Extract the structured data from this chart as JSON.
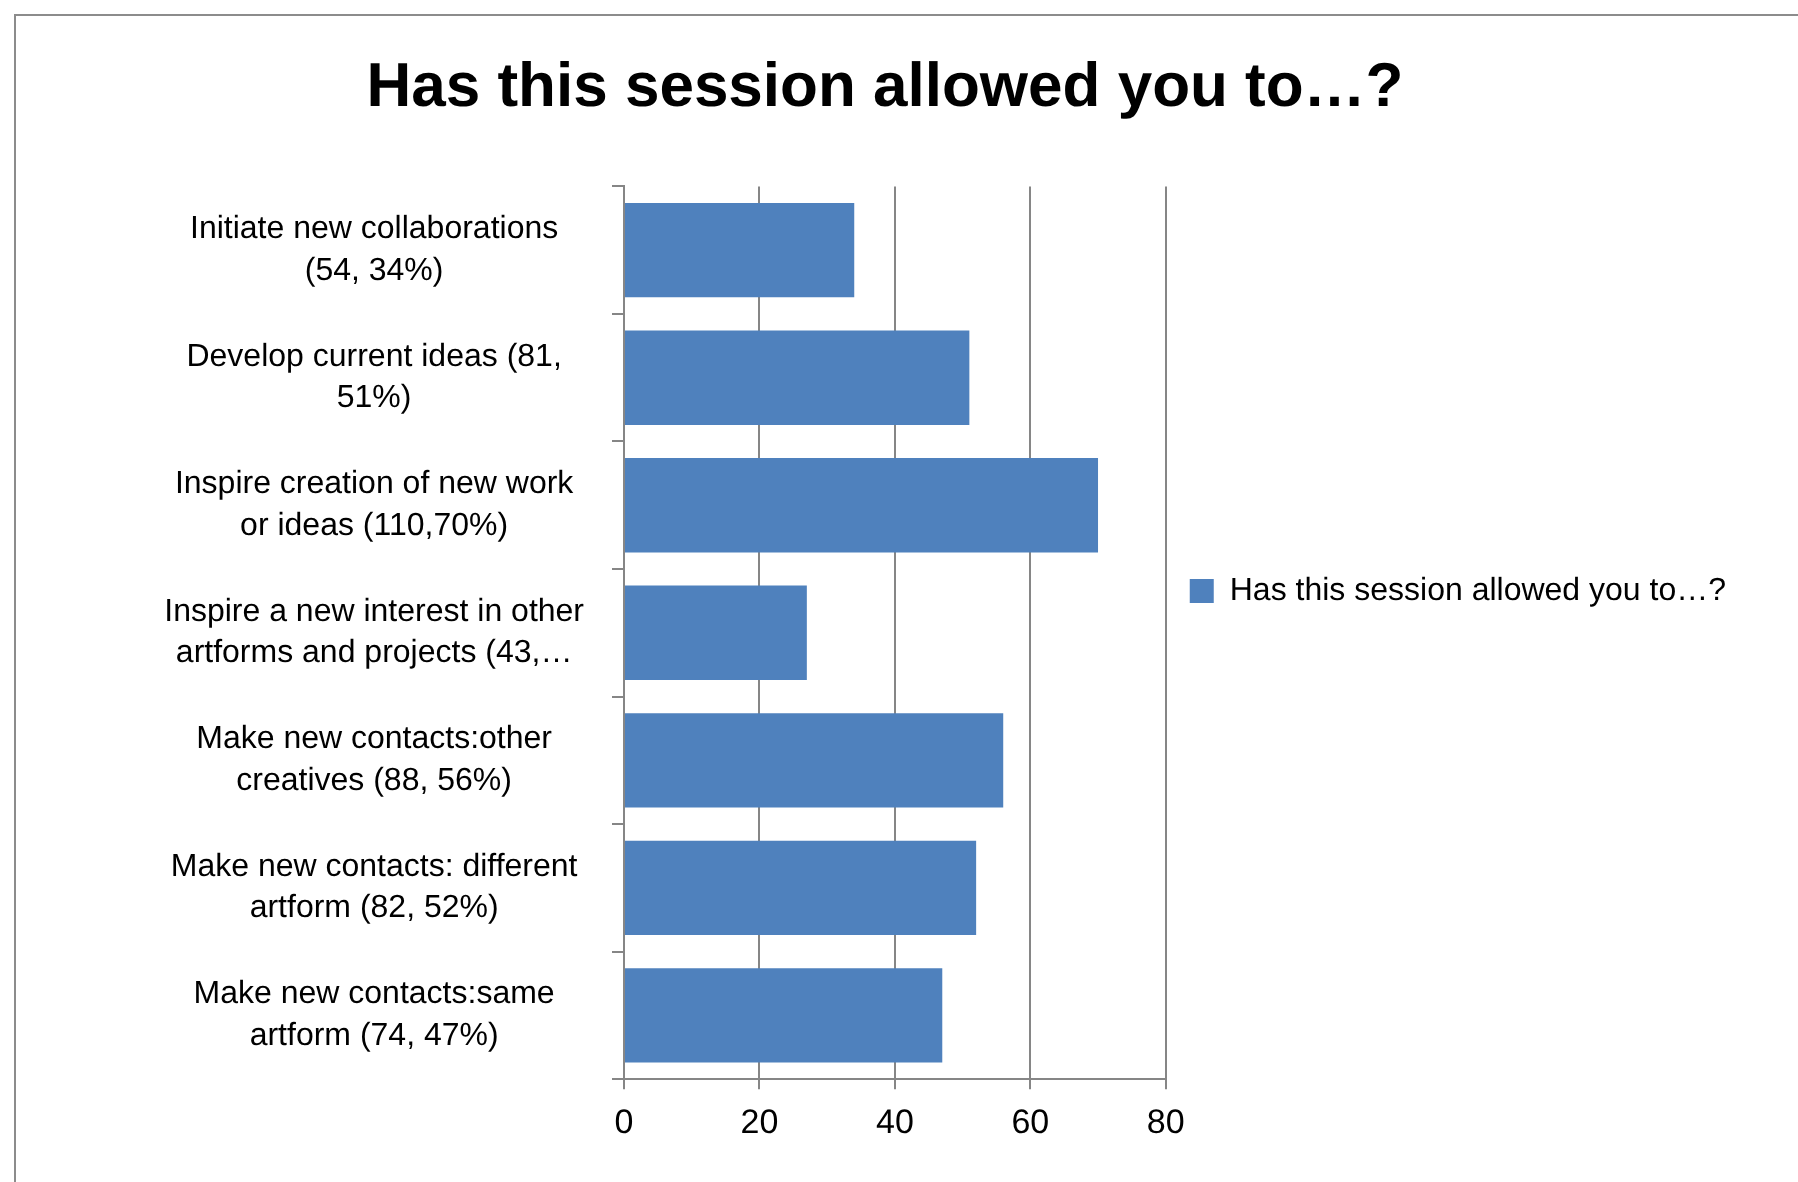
{
  "chart_data": {
    "type": "bar",
    "orientation": "horizontal",
    "title": "Has this session allowed you to…?",
    "categories": [
      "Initiate new collaborations (54, 34%)",
      "Develop current ideas (81, 51%)",
      "Inspire creation of new work or ideas (110,70%)",
      "Inspire a new interest in other artforms and projects (43,…",
      "Make new contacts:other creatives (88, 56%)",
      "Make new contacts: different artform (82, 52%)",
      "Make new contacts:same artform (74, 47%)"
    ],
    "series": [
      {
        "name": "Has this session allowed you to…?",
        "color": "#4f81bd",
        "values": [
          34,
          51,
          70,
          27,
          56,
          52,
          47
        ]
      }
    ],
    "xlim": [
      0,
      80
    ],
    "xticks": [
      0,
      20,
      40,
      60,
      80
    ],
    "grid": "x",
    "legend": "right"
  }
}
